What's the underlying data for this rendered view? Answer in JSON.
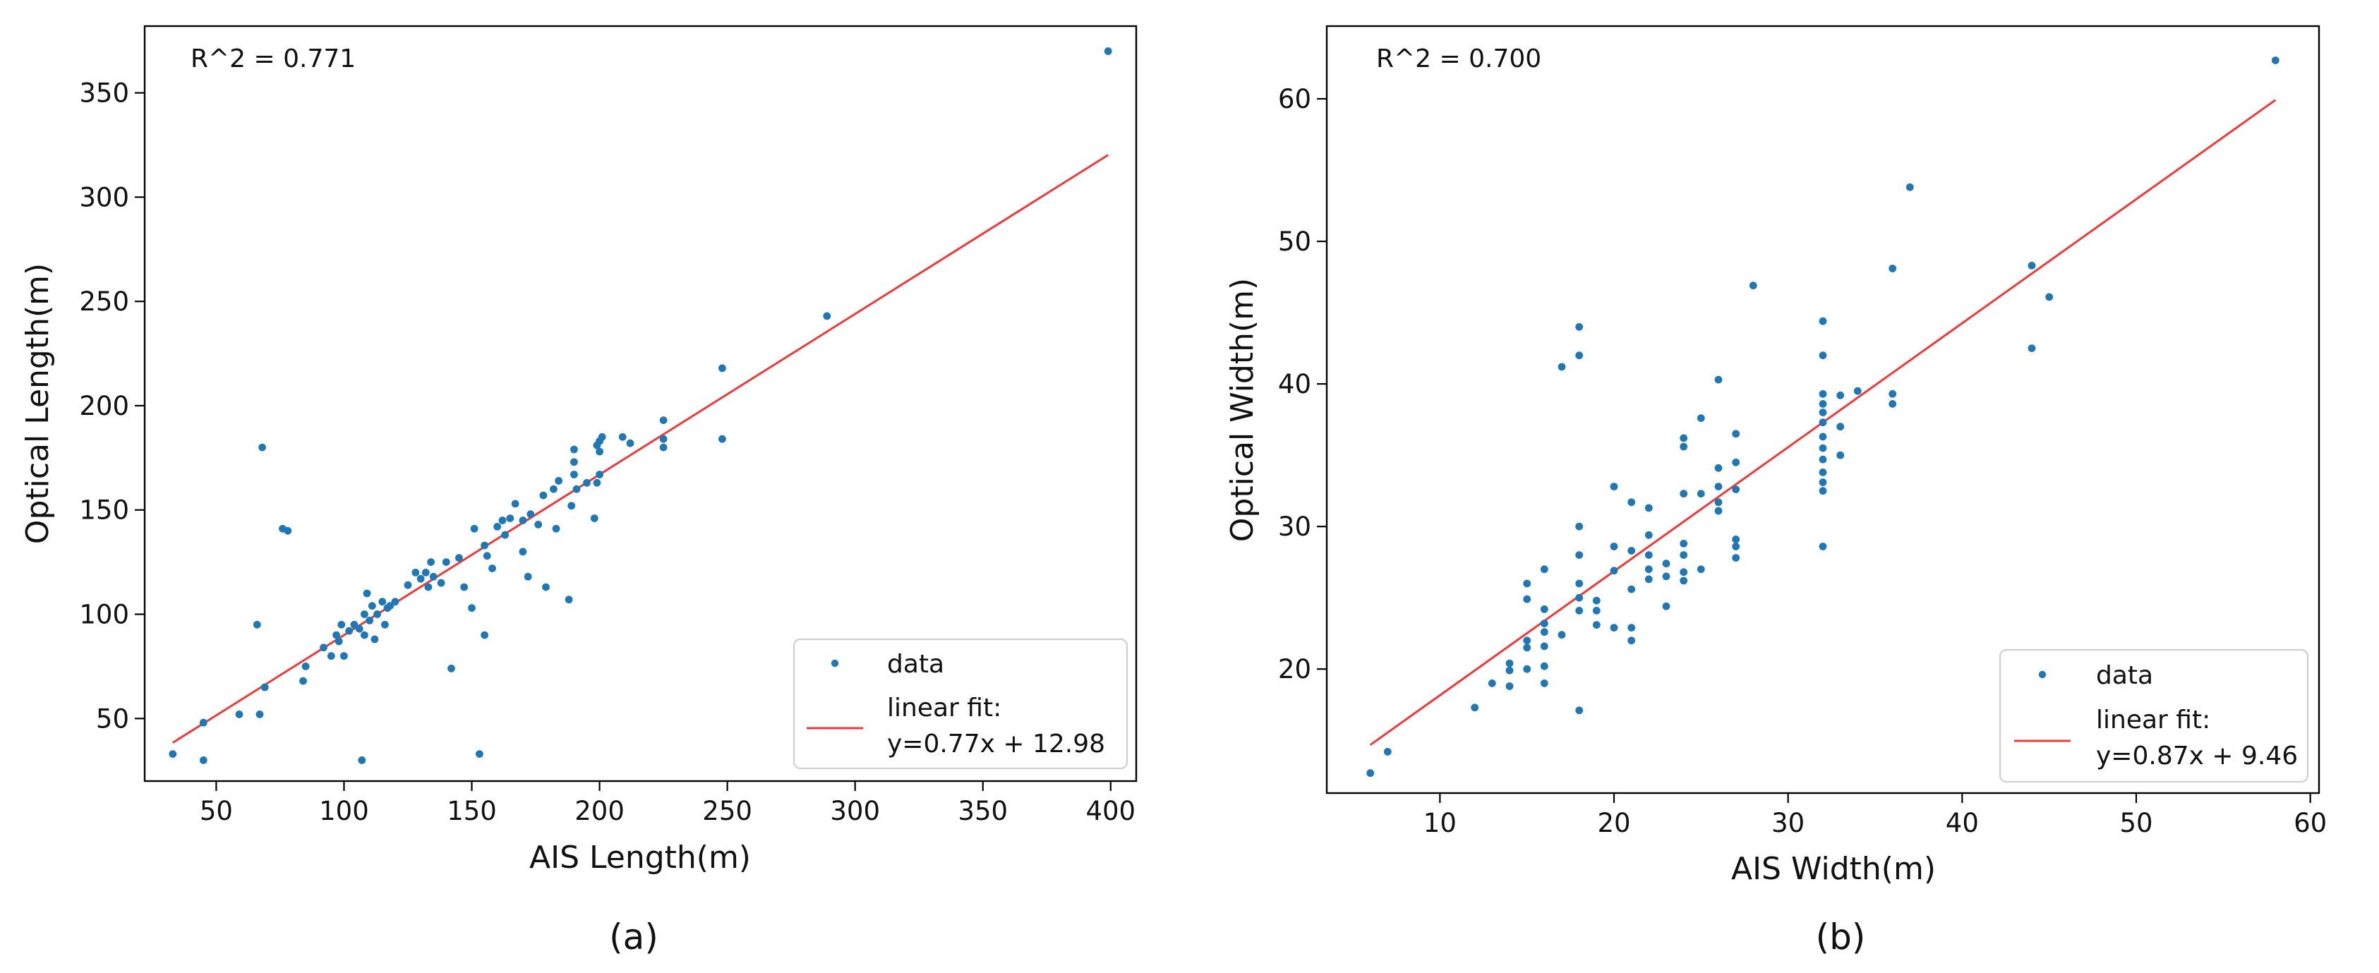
{
  "chart_data": [
    {
      "type": "scatter",
      "panel_label": "(a)",
      "r2_text": "R^2 = 0.771",
      "xlabel": "AIS Length(m)",
      "ylabel": "Optical Length(m)",
      "xlim": [
        22,
        410
      ],
      "ylim": [
        20,
        382
      ],
      "xticks": [
        50,
        100,
        150,
        200,
        250,
        300,
        350,
        400
      ],
      "yticks": [
        50,
        100,
        150,
        200,
        250,
        300,
        350
      ],
      "fit": {
        "slope": 0.77,
        "intercept": 12.98,
        "x_range": [
          33,
          399
        ]
      },
      "legend": {
        "position": "lower-right",
        "data_label": "data",
        "fit_label_1": "linear fit:",
        "fit_label_2": "y=0.77x + 12.98"
      },
      "series": [
        {
          "name": "data",
          "color": "#1f77b4",
          "points": [
            [
              33,
              33
            ],
            [
              45,
              30
            ],
            [
              45,
              48
            ],
            [
              59,
              52
            ],
            [
              66,
              95
            ],
            [
              67,
              52
            ],
            [
              68,
              180
            ],
            [
              69,
              65
            ],
            [
              76,
              141
            ],
            [
              78,
              140
            ],
            [
              84,
              68
            ],
            [
              85,
              75
            ],
            [
              92,
              84
            ],
            [
              95,
              80
            ],
            [
              97,
              90
            ],
            [
              98,
              87
            ],
            [
              99,
              95
            ],
            [
              100,
              80
            ],
            [
              102,
              92
            ],
            [
              104,
              95
            ],
            [
              106,
              93
            ],
            [
              107,
              30
            ],
            [
              108,
              90
            ],
            [
              108,
              100
            ],
            [
              109,
              110
            ],
            [
              110,
              97
            ],
            [
              111,
              104
            ],
            [
              112,
              88
            ],
            [
              113,
              100
            ],
            [
              115,
              106
            ],
            [
              116,
              95
            ],
            [
              117,
              103
            ],
            [
              118,
              104
            ],
            [
              120,
              106
            ],
            [
              125,
              114
            ],
            [
              128,
              120
            ],
            [
              130,
              117
            ],
            [
              132,
              120
            ],
            [
              133,
              113
            ],
            [
              134,
              125
            ],
            [
              135,
              118
            ],
            [
              138,
              115
            ],
            [
              140,
              125
            ],
            [
              142,
              74
            ],
            [
              145,
              127
            ],
            [
              147,
              113
            ],
            [
              150,
              103
            ],
            [
              151,
              141
            ],
            [
              153,
              33
            ],
            [
              155,
              90
            ],
            [
              155,
              133
            ],
            [
              156,
              128
            ],
            [
              158,
              122
            ],
            [
              160,
              142
            ],
            [
              162,
              145
            ],
            [
              163,
              138
            ],
            [
              165,
              146
            ],
            [
              167,
              153
            ],
            [
              170,
              145
            ],
            [
              170,
              130
            ],
            [
              172,
              118
            ],
            [
              173,
              148
            ],
            [
              176,
              143
            ],
            [
              178,
              157
            ],
            [
              179,
              113
            ],
            [
              182,
              160
            ],
            [
              183,
              141
            ],
            [
              184,
              164
            ],
            [
              188,
              107
            ],
            [
              189,
              152
            ],
            [
              190,
              173
            ],
            [
              190,
              167
            ],
            [
              190,
              179
            ],
            [
              191,
              160
            ],
            [
              195,
              163
            ],
            [
              198,
              146
            ],
            [
              199,
              163
            ],
            [
              199,
              181
            ],
            [
              200,
              167
            ],
            [
              200,
              178
            ],
            [
              200,
              183
            ],
            [
              201,
              185
            ],
            [
              209,
              185
            ],
            [
              212,
              182
            ],
            [
              225,
              193
            ],
            [
              225,
              184
            ],
            [
              225,
              180
            ],
            [
              248,
              218
            ],
            [
              248,
              184
            ],
            [
              289,
              243
            ],
            [
              399,
              370
            ]
          ]
        }
      ]
    },
    {
      "type": "scatter",
      "panel_label": "(b)",
      "r2_text": "R^2 = 0.700",
      "xlabel": "AIS Width(m)",
      "ylabel": "Optical Width(m)",
      "xlim": [
        3.5,
        60.5
      ],
      "ylim": [
        11.3,
        65.1
      ],
      "xticks": [
        10,
        20,
        30,
        40,
        50,
        60
      ],
      "yticks": [
        20,
        30,
        40,
        50,
        60
      ],
      "fit": {
        "slope": 0.87,
        "intercept": 9.46,
        "x_range": [
          6,
          58
        ]
      },
      "legend": {
        "position": "lower-right",
        "data_label": "data",
        "fit_label_1": "linear fit:",
        "fit_label_2": "y=0.87x + 9.46"
      },
      "series": [
        {
          "name": "data",
          "color": "#1f77b4",
          "points": [
            [
              6,
              12.7
            ],
            [
              7,
              14.2
            ],
            [
              12,
              17.3
            ],
            [
              13,
              19
            ],
            [
              14,
              19.9
            ],
            [
              14,
              20.4
            ],
            [
              14,
              18.8
            ],
            [
              15,
              20
            ],
            [
              15,
              21.5
            ],
            [
              15,
              22
            ],
            [
              15,
              26
            ],
            [
              15,
              24.9
            ],
            [
              16,
              19
            ],
            [
              16,
              20.2
            ],
            [
              16,
              21.6
            ],
            [
              16,
              22.6
            ],
            [
              16,
              23.2
            ],
            [
              16,
              24.2
            ],
            [
              16,
              27
            ],
            [
              17,
              22.4
            ],
            [
              17,
              41.2
            ],
            [
              18,
              17.1
            ],
            [
              18,
              24.1
            ],
            [
              18,
              25
            ],
            [
              18,
              26
            ],
            [
              18,
              28
            ],
            [
              18,
              30
            ],
            [
              18,
              42
            ],
            [
              18,
              44
            ],
            [
              19,
              23.1
            ],
            [
              19,
              24.1
            ],
            [
              19,
              24.8
            ],
            [
              20,
              22.9
            ],
            [
              20,
              26.9
            ],
            [
              20,
              28.6
            ],
            [
              20,
              32.8
            ],
            [
              21,
              22.9
            ],
            [
              21,
              22
            ],
            [
              21,
              25.6
            ],
            [
              21,
              28.3
            ],
            [
              21,
              31.7
            ],
            [
              22,
              26.3
            ],
            [
              22,
              27
            ],
            [
              22,
              28
            ],
            [
              22,
              31.3
            ],
            [
              22,
              29.4
            ],
            [
              23,
              26.5
            ],
            [
              23,
              27.4
            ],
            [
              23,
              24.4
            ],
            [
              24,
              26.2
            ],
            [
              24,
              26.8
            ],
            [
              24,
              28
            ],
            [
              24,
              28.8
            ],
            [
              24,
              32.3
            ],
            [
              24,
              35.6
            ],
            [
              24,
              36.2
            ],
            [
              25,
              27
            ],
            [
              25,
              32.3
            ],
            [
              25,
              37.6
            ],
            [
              26,
              31.1
            ],
            [
              26,
              31.7
            ],
            [
              26,
              32.8
            ],
            [
              26,
              34.1
            ],
            [
              26,
              40.3
            ],
            [
              27,
              27.8
            ],
            [
              27,
              28.6
            ],
            [
              27,
              29.1
            ],
            [
              27,
              32.6
            ],
            [
              27,
              34.5
            ],
            [
              27,
              36.5
            ],
            [
              28,
              46.9
            ],
            [
              32,
              28.6
            ],
            [
              32,
              32.5
            ],
            [
              32,
              33.1
            ],
            [
              32,
              33.8
            ],
            [
              32,
              34.7
            ],
            [
              32,
              35.5
            ],
            [
              32,
              36.3
            ],
            [
              32,
              37.3
            ],
            [
              32,
              38
            ],
            [
              32,
              38.6
            ],
            [
              32,
              39.3
            ],
            [
              32,
              42
            ],
            [
              32,
              44.4
            ],
            [
              33,
              35
            ],
            [
              33,
              37
            ],
            [
              33,
              39.2
            ],
            [
              34,
              39.5
            ],
            [
              36,
              38.6
            ],
            [
              36,
              39.3
            ],
            [
              36,
              48.1
            ],
            [
              37,
              53.8
            ],
            [
              44,
              42.5
            ],
            [
              44,
              48.3
            ],
            [
              45,
              46.1
            ],
            [
              58,
              62.7
            ]
          ]
        }
      ]
    }
  ]
}
